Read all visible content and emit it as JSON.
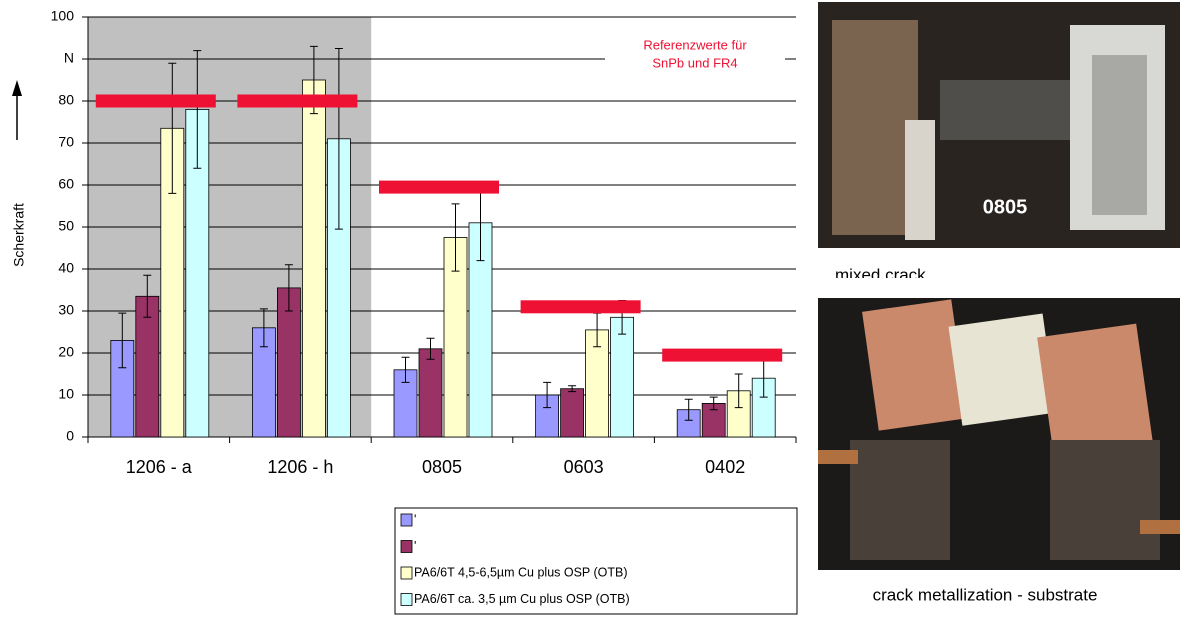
{
  "chart_data": {
    "type": "bar",
    "y_label": "Scherkraft",
    "annotation": [
      "Referenzwerte für",
      "SnPb und FR4"
    ],
    "categories": [
      "1206 - a",
      "1206 - h",
      "0805",
      "0603",
      "0402"
    ],
    "series": [
      {
        "name": "'",
        "color": "#9999ff",
        "values": [
          23,
          26,
          16,
          10,
          6.5
        ],
        "errors": [
          6.5,
          4.5,
          3,
          3,
          2.5
        ]
      },
      {
        "name": "'",
        "color": "#993366",
        "values": [
          33.5,
          35.5,
          21,
          11.5,
          8
        ],
        "errors": [
          5,
          5.5,
          2.5,
          0.7,
          1.5
        ]
      },
      {
        "name": "PA6/6T 4,5-6,5µm Cu plus OSP (OTB)",
        "color": "#ffffcc",
        "values": [
          73.5,
          85,
          47.5,
          25.5,
          11
        ],
        "errors": [
          15.5,
          8,
          8,
          4,
          4
        ]
      },
      {
        "name": "PA6/6T ca. 3,5 µm Cu plus OSP (OTB)",
        "color": "#ccffff",
        "values": [
          78,
          71,
          51,
          28.5,
          14
        ],
        "errors": [
          14,
          21.5,
          9,
          4,
          4.5
        ]
      }
    ],
    "reference": {
      "color": "#ee1133",
      "values": [
        80,
        80,
        59.5,
        31,
        19.5
      ]
    },
    "ylim": [
      0,
      100
    ],
    "yticks": [
      0,
      10,
      20,
      30,
      40,
      50,
      60,
      70,
      80,
      {
        "value": 90,
        "label": "N"
      },
      100
    ],
    "grid": true
  },
  "images": [
    {
      "label": "0805",
      "caption": "mixed crack"
    },
    {
      "caption": "crack metallization - substrate"
    }
  ]
}
